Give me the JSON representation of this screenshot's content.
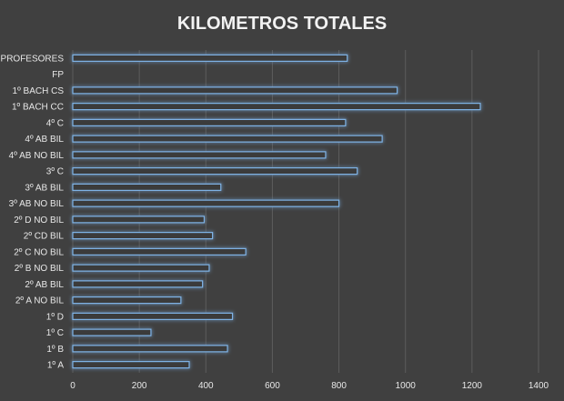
{
  "chart_data": {
    "type": "bar",
    "orientation": "horizontal",
    "title": "KILOMETROS TOTALES",
    "xlabel": "",
    "ylabel": "",
    "categories": [
      "PROFESORES",
      "FP",
      "1º BACH CS",
      "1º BACH CC",
      "4º C",
      "4º AB BIL",
      "4º AB NO BIL",
      "3º C",
      "3º AB BIL",
      "3º AB NO BIL",
      "2º D NO BIL",
      "2º CD BIL",
      "2º C NO BIL",
      "2º B NO BIL",
      "2º AB BIL",
      "2º A NO BIL",
      "1º D",
      "1º C",
      "1º B",
      "1º A"
    ],
    "values": [
      825,
      0,
      975,
      1225,
      820,
      930,
      760,
      855,
      445,
      800,
      395,
      420,
      520,
      410,
      390,
      325,
      480,
      235,
      465,
      350
    ],
    "xlim": [
      0,
      1400
    ],
    "xticks": [
      0,
      200,
      400,
      600,
      800,
      1000,
      1200,
      1400
    ],
    "grid": true,
    "legend": "none",
    "colors": {
      "background": "#404040",
      "bar_fill": "#3a3a3a",
      "bar_outline": "#7fb3e6",
      "bar_glow": "#4f8fd1",
      "grid": "#5c5c5c",
      "text": "#e8e8e8"
    }
  }
}
